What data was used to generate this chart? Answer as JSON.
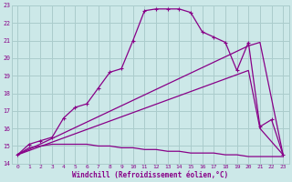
{
  "xlabel": "Windchill (Refroidissement éolien,°C)",
  "bg_color": "#cce8e8",
  "grid_color": "#aacccc",
  "line_color": "#880088",
  "xlim": [
    -0.5,
    23.5
  ],
  "ylim": [
    14,
    23
  ],
  "xticks": [
    0,
    1,
    2,
    3,
    4,
    5,
    6,
    7,
    8,
    9,
    10,
    11,
    12,
    13,
    14,
    15,
    16,
    17,
    18,
    19,
    20,
    21,
    22,
    23
  ],
  "yticks": [
    14,
    15,
    16,
    17,
    18,
    19,
    20,
    21,
    22,
    23
  ],
  "line1_x": [
    0,
    1,
    2,
    3,
    4,
    5,
    6,
    7,
    8,
    9,
    10,
    11,
    12,
    13,
    14,
    15,
    16,
    17,
    18,
    19,
    20,
    21,
    22,
    23
  ],
  "line1_y": [
    14.5,
    15.1,
    15.3,
    15.5,
    16.6,
    17.2,
    17.4,
    18.3,
    19.2,
    19.4,
    21.0,
    22.7,
    22.8,
    22.8,
    22.8,
    22.6,
    21.5,
    21.2,
    20.9,
    19.3,
    20.9,
    16.1,
    16.5,
    14.5
  ],
  "line2_x": [
    0,
    20,
    21,
    23
  ],
  "line2_y": [
    14.5,
    20.7,
    20.9,
    14.5
  ],
  "line3_x": [
    0,
    20,
    21,
    23
  ],
  "line3_y": [
    14.5,
    19.3,
    16.0,
    14.5
  ],
  "line4_x": [
    0,
    1,
    2,
    3,
    4,
    5,
    6,
    7,
    8,
    9,
    10,
    11,
    12,
    13,
    14,
    15,
    16,
    17,
    18,
    19,
    20,
    21,
    22,
    23
  ],
  "line4_y": [
    14.5,
    14.9,
    15.0,
    15.1,
    15.1,
    15.1,
    15.1,
    15.0,
    15.0,
    14.9,
    14.9,
    14.8,
    14.8,
    14.7,
    14.7,
    14.6,
    14.6,
    14.6,
    14.5,
    14.5,
    14.4,
    14.4,
    14.4,
    14.4
  ]
}
